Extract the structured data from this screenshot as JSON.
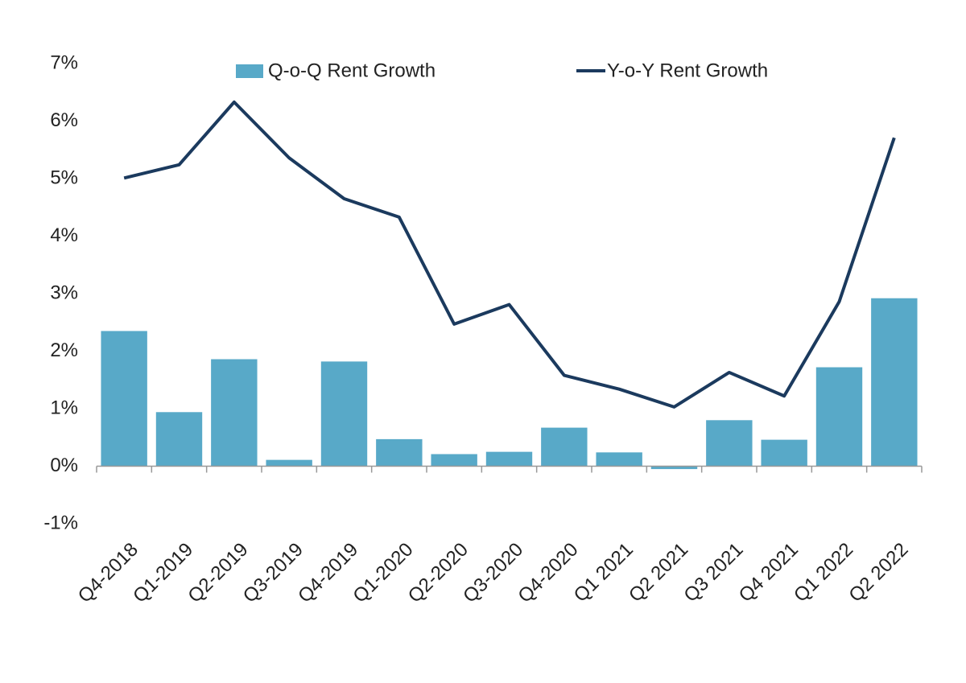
{
  "chart_data": {
    "type": "bar-line",
    "categories": [
      "Q4-2018",
      "Q1-2019",
      "Q2-2019",
      "Q3-2019",
      "Q4-2019",
      "Q1-2020",
      "Q2-2020",
      "Q3-2020",
      "Q4-2020",
      "Q1 2021",
      "Q2 2021",
      "Q3 2021",
      "Q4 2021",
      "Q1 2022",
      "Q2 2022"
    ],
    "series": [
      {
        "name": "Q-o-Q Rent Growth",
        "type": "bar",
        "color": "#58a9c8",
        "values": [
          2.35,
          0.94,
          1.86,
          0.11,
          1.82,
          0.47,
          0.21,
          0.25,
          0.67,
          0.24,
          -0.05,
          0.8,
          0.46,
          1.72,
          2.92
        ]
      },
      {
        "name": "Y-o-Y Rent Growth",
        "type": "line",
        "color": "#1b3a5e",
        "values": [
          5.01,
          5.24,
          6.33,
          5.36,
          4.65,
          4.33,
          2.47,
          2.81,
          1.58,
          1.34,
          1.03,
          1.63,
          1.22,
          2.86,
          5.71
        ]
      }
    ],
    "ylim": [
      -1,
      7
    ],
    "yticks": [
      {
        "value": -1,
        "label": "-1%"
      },
      {
        "value": 0,
        "label": "0%"
      },
      {
        "value": 1,
        "label": "1%"
      },
      {
        "value": 2,
        "label": "2%"
      },
      {
        "value": 3,
        "label": "3%"
      },
      {
        "value": 4,
        "label": "4%"
      },
      {
        "value": 5,
        "label": "5%"
      },
      {
        "value": 6,
        "label": "6%"
      },
      {
        "value": 7,
        "label": "7%"
      }
    ],
    "grid": false
  }
}
